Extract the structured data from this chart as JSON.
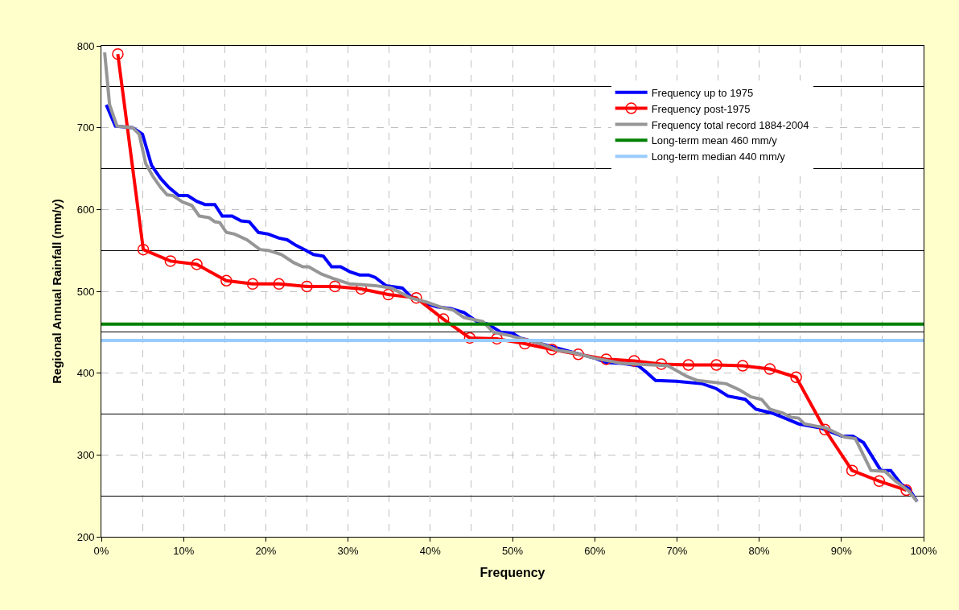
{
  "chart_data": {
    "type": "line",
    "xlabel": "Frequency",
    "ylabel": "Regional Annual Rainfall (mm/y)",
    "xlim": [
      0,
      100
    ],
    "ylim": [
      200,
      800
    ],
    "xticks": [
      {
        "value": 0,
        "label": "0%"
      },
      {
        "value": 10,
        "label": "10%"
      },
      {
        "value": 20,
        "label": "20%"
      },
      {
        "value": 30,
        "label": "30%"
      },
      {
        "value": 40,
        "label": "40%"
      },
      {
        "value": 50,
        "label": "50%"
      },
      {
        "value": 60,
        "label": "60%"
      },
      {
        "value": 70,
        "label": "70%"
      },
      {
        "value": 80,
        "label": "80%"
      },
      {
        "value": 90,
        "label": "90%"
      },
      {
        "value": 100,
        "label": "100%"
      }
    ],
    "yticks": [
      200,
      300,
      400,
      500,
      600,
      700,
      800
    ],
    "grid": true,
    "legend": "top right",
    "series": [
      {
        "name": "Frequency up to 1975",
        "color": "#0000ff",
        "marker": "none",
        "x": [
          0.6,
          1.7,
          3.8,
          5,
          6.1,
          7.2,
          8.2,
          9.4,
          10.5,
          11.6,
          12.6,
          13.8,
          14.7,
          15.9,
          17,
          18,
          19.1,
          20.3,
          21.6,
          22.6,
          23.7,
          24.9,
          25.8,
          27,
          28,
          29.1,
          30.2,
          31.4,
          32.5,
          33.3,
          34.6,
          36.6,
          37.6,
          39.5,
          40.8,
          42.5,
          44.1,
          45.7,
          47,
          48.6,
          50,
          50.9,
          53.5,
          55.5,
          57.4,
          60.1,
          61.4,
          63.3,
          65.3,
          66.3,
          67.4,
          69.9,
          73.1,
          74.8,
          76.2,
          78.3,
          79.6,
          81.6,
          82.9,
          84.8,
          87.5,
          90.1,
          91.4,
          92.7,
          94.8,
          96,
          97.3,
          98.2,
          99.2
        ],
        "values": [
          728,
          702,
          700,
          692,
          654,
          638,
          627,
          617,
          617,
          610,
          606,
          606,
          592,
          592,
          586,
          585,
          572,
          570,
          565,
          563,
          556,
          550,
          545,
          543,
          530,
          530,
          524,
          520,
          520,
          517,
          507,
          504,
          494,
          485,
          481,
          479,
          474,
          463,
          460,
          450,
          449,
          443,
          436,
          null,
          null,
          418,
          413,
          412,
          409,
          401,
          391,
          390,
          387,
          381,
          372,
          368,
          356,
          351,
          346,
          338,
          333,
          323,
          323,
          315,
          281,
          281,
          264,
          259,
          243
        ]
      },
      {
        "name": "Frequency post-1975",
        "color": "#ff0000",
        "marker": "circle",
        "x": [
          2,
          5.1,
          8.4,
          11.6,
          15.2,
          18.4,
          21.6,
          25,
          28.4,
          31.6,
          34.9,
          38.3,
          41.6,
          44.8,
          48.1,
          51.5,
          54.8,
          58,
          61.4,
          64.8,
          68.1,
          71.4,
          74.8,
          78,
          81.3,
          84.5,
          88,
          91.3,
          94.6,
          97.9
        ],
        "values": [
          790,
          551,
          537,
          533,
          513,
          509,
          509,
          506,
          506,
          503,
          496,
          492,
          466,
          443,
          442,
          436,
          429,
          423,
          417,
          415,
          411,
          410,
          410,
          409,
          405,
          395,
          331,
          281,
          268,
          257
        ]
      },
      {
        "name": "Frequency total record 1884-2004",
        "color": "#969696",
        "marker": "none",
        "x": [
          0.4,
          1,
          1.9,
          3.8,
          4.6,
          5.4,
          6.3,
          7.2,
          8,
          8.7,
          9.9,
          11,
          11.9,
          13.1,
          13.8,
          14.4,
          15.2,
          16.2,
          17.7,
          19.3,
          20.3,
          21.9,
          23.4,
          24.5,
          25.2,
          26.8,
          28.4,
          30.2,
          33.3,
          35.3,
          37.6,
          39.5,
          41.2,
          42.8,
          44.1,
          46.4,
          47.7,
          49.6,
          53.5,
          55.5,
          57.4,
          60.1,
          63.3,
          68.9,
          71.2,
          72.5,
          76,
          77.7,
          79,
          80.3,
          81.3,
          82.9,
          83.9,
          84.8,
          85.5,
          88.1,
          90.4,
          91.7,
          93.6,
          95.3,
          96.6,
          98.2,
          99.2
        ],
        "values": [
          792,
          728,
          702,
          700,
          692,
          656,
          640,
          627,
          618,
          617,
          609,
          605,
          592,
          590,
          585,
          584,
          572,
          570,
          563,
          551,
          550,
          545,
          535,
          530,
          530,
          521,
          515,
          509,
          507,
          504,
          492,
          487,
          481,
          477,
          468,
          463,
          450,
          446,
          436,
          428,
          425,
          418,
          412,
          409,
          396,
          391,
          387,
          379,
          371,
          368,
          356,
          351,
          346,
          345,
          338,
          333,
          322,
          320,
          281,
          280,
          268,
          256,
          243
        ]
      }
    ],
    "ref_lines": [
      {
        "axis": "y",
        "value": 460,
        "label": "Long-term mean 460 mm/y",
        "color": "#008000"
      },
      {
        "axis": "y",
        "value": 440,
        "label": "Long-term median 440 mm/y",
        "color": "#99ccff"
      }
    ]
  }
}
